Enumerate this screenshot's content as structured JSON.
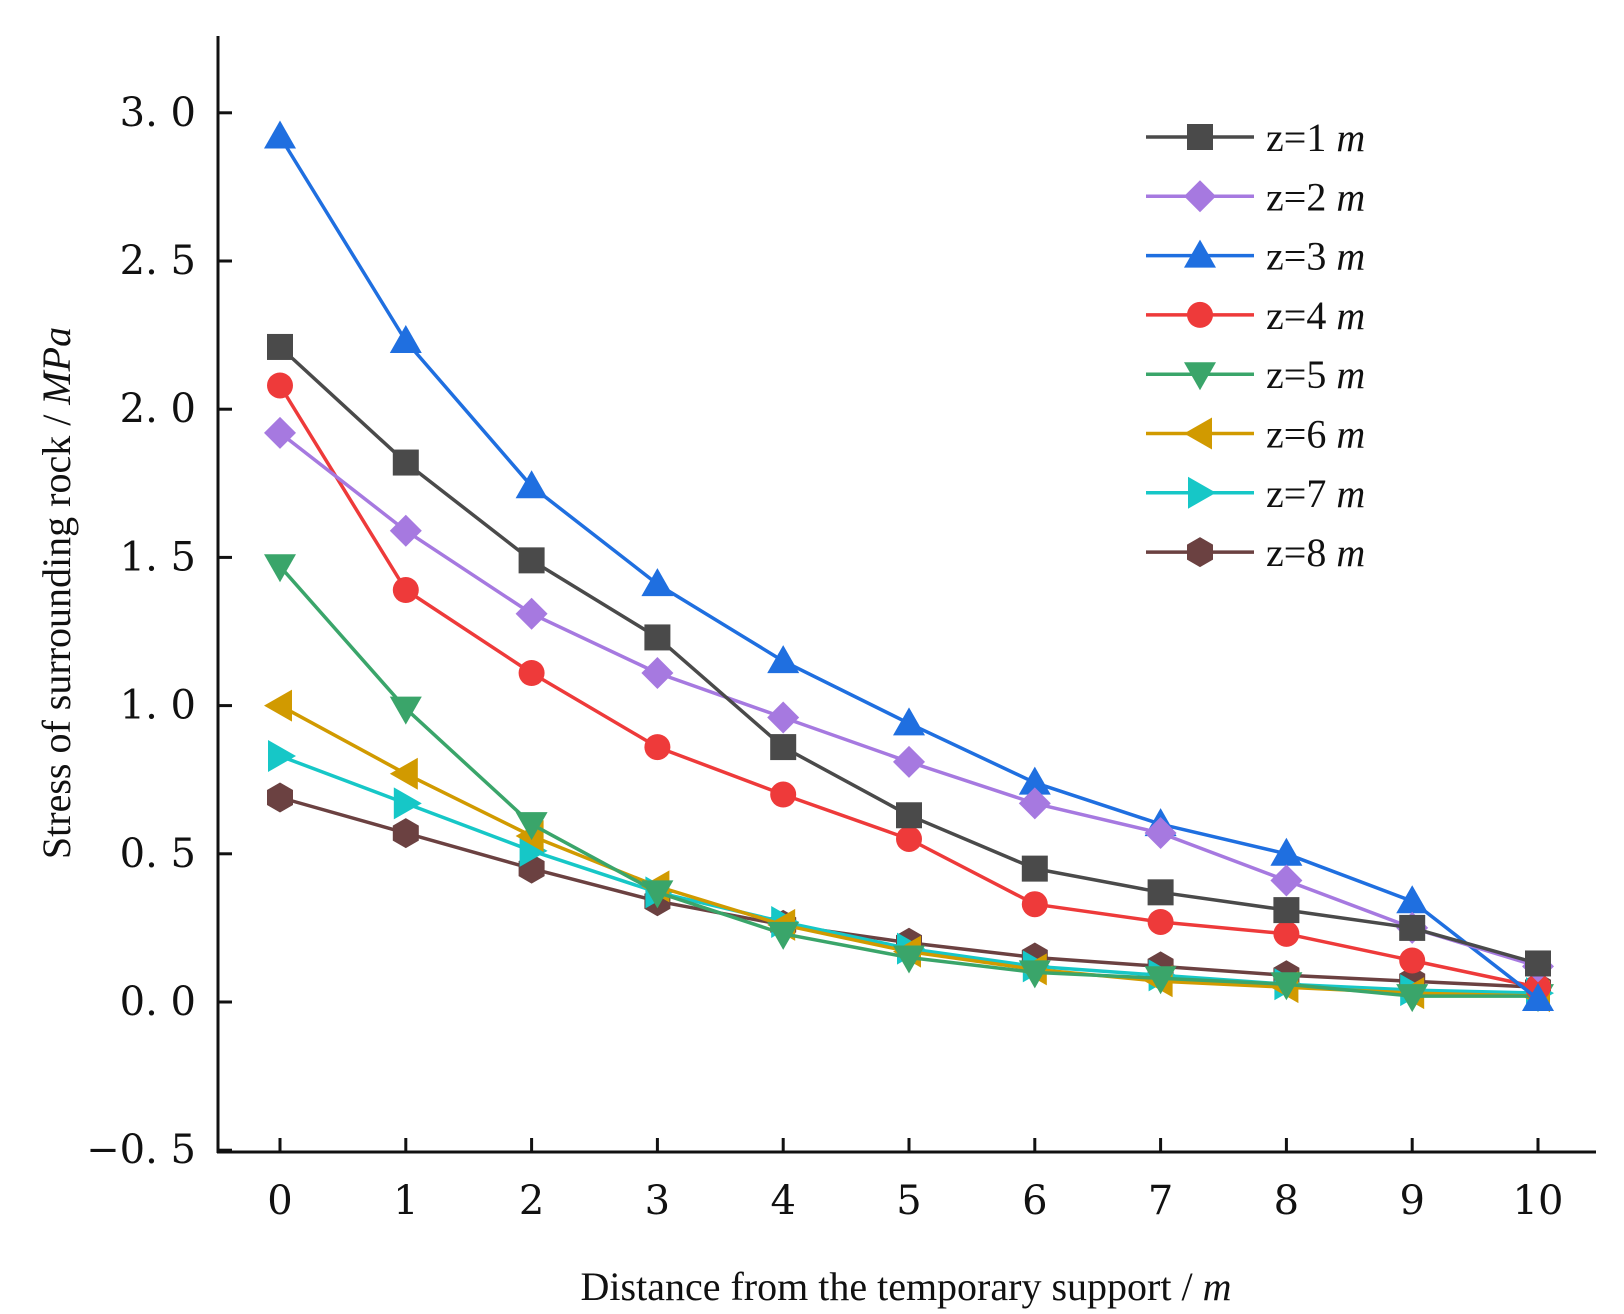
{
  "chart_data": {
    "type": "line",
    "title": "",
    "xlabel": "Distance from the temporary support / ",
    "xlabel_unit": "m",
    "ylabel": "Stress of surrounding rock / ",
    "ylabel_unit": "MPa",
    "xlim": [
      -0.5,
      10.5
    ],
    "ylim": [
      -0.5,
      3.25
    ],
    "x": [
      0,
      1,
      2,
      3,
      4,
      5,
      6,
      7,
      8,
      9,
      10
    ],
    "x_ticks": [
      "0",
      "1",
      "2",
      "3",
      "4",
      "5",
      "6",
      "7",
      "8",
      "9",
      "10"
    ],
    "y_tick_values": [
      -0.5,
      0.0,
      0.5,
      1.0,
      1.5,
      2.0,
      2.5,
      3.0
    ],
    "y_ticks": [
      "−0. 5",
      "0. 0",
      "0. 5",
      "1. 0",
      "1. 5",
      "2. 0",
      "2. 5",
      "3. 0"
    ],
    "grid": false,
    "legend_position": "top-right",
    "series": [
      {
        "name": "z=1 ",
        "unit": "m",
        "color": "#4a4a4a",
        "marker": "square",
        "values": [
          2.21,
          1.82,
          1.49,
          1.23,
          0.86,
          0.63,
          0.45,
          0.37,
          0.31,
          0.25,
          0.13
        ]
      },
      {
        "name": "z=2 ",
        "unit": "m",
        "color": "#a679e0",
        "marker": "diamond",
        "values": [
          1.92,
          1.59,
          1.31,
          1.11,
          0.96,
          0.81,
          0.67,
          0.57,
          0.41,
          0.25,
          0.12
        ]
      },
      {
        "name": "z=3 ",
        "unit": "m",
        "color": "#1f6fe0",
        "marker": "triangle-up",
        "values": [
          2.92,
          2.23,
          1.74,
          1.41,
          1.15,
          0.94,
          0.74,
          0.6,
          0.5,
          0.34,
          0.01
        ]
      },
      {
        "name": "z=4 ",
        "unit": "m",
        "color": "#ee3a3a",
        "marker": "circle",
        "values": [
          2.08,
          1.39,
          1.11,
          0.86,
          0.7,
          0.55,
          0.33,
          0.27,
          0.23,
          0.14,
          0.05
        ]
      },
      {
        "name": "z=5 ",
        "unit": "m",
        "color": "#3aa56a",
        "marker": "triangle-down",
        "values": [
          1.47,
          0.99,
          0.6,
          0.37,
          0.23,
          0.15,
          0.1,
          0.08,
          0.06,
          0.02,
          0.02
        ]
      },
      {
        "name": "z=6 ",
        "unit": "m",
        "color": "#d19a00",
        "marker": "triangle-left",
        "values": [
          1.0,
          0.77,
          0.56,
          0.39,
          0.26,
          0.17,
          0.11,
          0.07,
          0.05,
          0.03,
          0.02
        ]
      },
      {
        "name": "z=7 ",
        "unit": "m",
        "color": "#16c7c7",
        "marker": "triangle-right",
        "values": [
          0.83,
          0.67,
          0.51,
          0.37,
          0.27,
          0.18,
          0.12,
          0.09,
          0.06,
          0.04,
          0.03
        ]
      },
      {
        "name": "z=8 ",
        "unit": "m",
        "color": "#6b4141",
        "marker": "hexagon",
        "values": [
          0.69,
          0.57,
          0.45,
          0.34,
          0.26,
          0.2,
          0.15,
          0.12,
          0.09,
          0.07,
          0.05
        ]
      }
    ]
  }
}
